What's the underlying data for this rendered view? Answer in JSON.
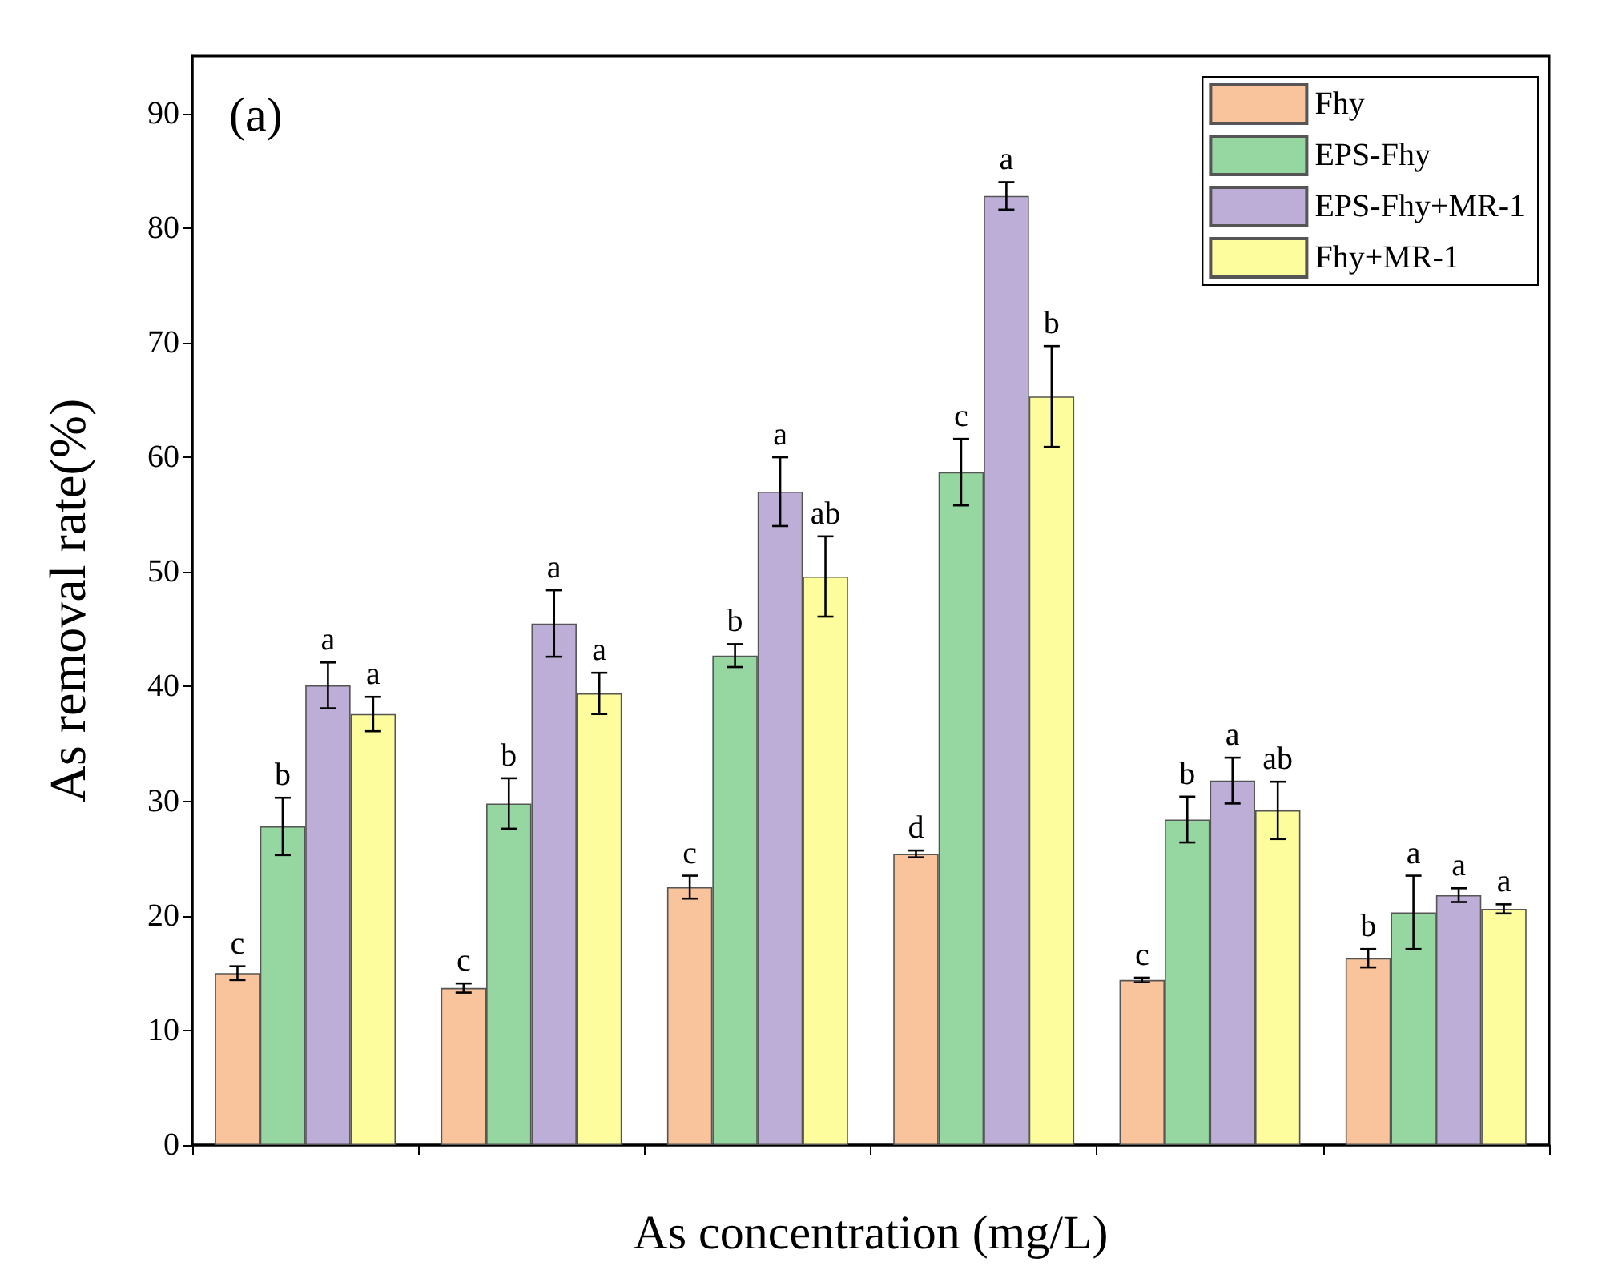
{
  "chart_data": {
    "type": "bar",
    "title": "(a)",
    "xlabel": "As concentration (mg/L)",
    "ylabel": "As removal rate(%)",
    "categories": [
      null,
      null,
      null,
      null,
      null,
      null
    ],
    "series": [
      {
        "name": "Fhy",
        "color": "#f9c39b",
        "values": [
          15,
          13.7,
          22.5,
          25.4,
          14.4,
          16.3
        ],
        "errors": [
          0.6,
          0.4,
          1,
          0.3,
          0.2,
          0.8
        ],
        "value_labels": [
          "c",
          "c",
          "c",
          "d",
          "c",
          "b"
        ]
      },
      {
        "name": "EPS-Fhy",
        "color": "#96d7a1",
        "values": [
          27.8,
          29.8,
          42.7,
          58.7,
          28.4,
          20.3
        ],
        "errors": [
          2.5,
          2.2,
          1,
          2.9,
          2,
          3.2
        ],
        "value_labels": [
          "b",
          "b",
          "b",
          "c",
          "b",
          "a"
        ]
      },
      {
        "name": "EPS-Fhy+MR-1",
        "color": "#bdaed8",
        "values": [
          40.1,
          45.5,
          57,
          82.8,
          31.8,
          21.8
        ],
        "errors": [
          2,
          2.9,
          3,
          1.2,
          2,
          0.6
        ],
        "value_labels": [
          "a",
          "a",
          "a",
          "a",
          "a",
          "a"
        ]
      },
      {
        "name": "Fhy+MR-1",
        "color": "#fdfd9d",
        "values": [
          37.6,
          39.4,
          49.6,
          65.3,
          29.2,
          20.6
        ],
        "errors": [
          1.5,
          1.8,
          3.5,
          4.4,
          2.5,
          0.4
        ],
        "value_labels": [
          "a",
          "a",
          "ab",
          "b",
          "ab",
          "a"
        ]
      }
    ],
    "ylim": [
      0,
      95
    ],
    "yticks": [
      0,
      10,
      20,
      30,
      40,
      50,
      60,
      70,
      80,
      90
    ],
    "grid": false,
    "legend": "top right"
  }
}
